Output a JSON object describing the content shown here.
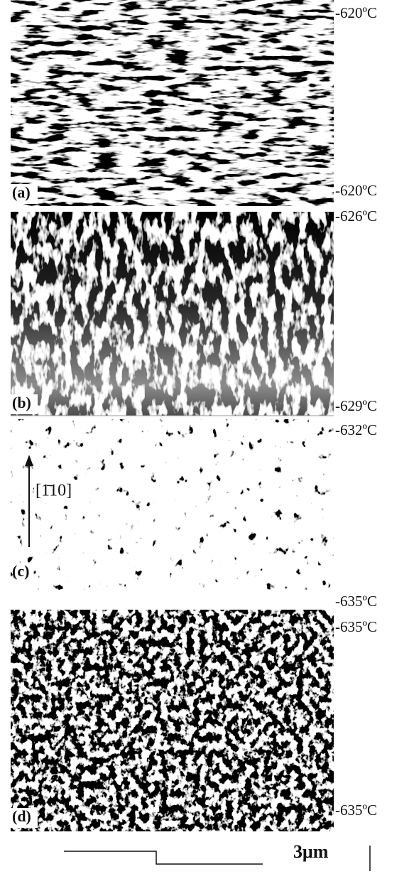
{
  "panels": [
    {
      "label": "(a)",
      "temp_top": "-620ºC",
      "temp_bottom": "-620ºC"
    },
    {
      "label": "(b)",
      "temp_top": "-626ºC",
      "temp_bottom": "-629ºC"
    },
    {
      "label": "(c)",
      "temp_top": "-632ºC",
      "temp_bottom": "-635ºC",
      "direction": "[1̄10]"
    },
    {
      "label": "(d)",
      "temp_top": "-635ºC",
      "temp_bottom": "-635ºC"
    }
  ],
  "scale_bar": "3μm"
}
